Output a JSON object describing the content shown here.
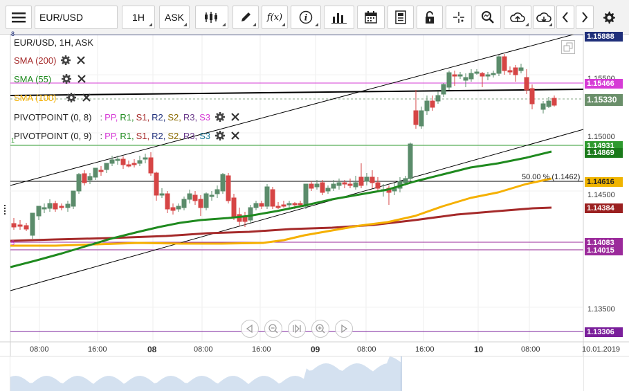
{
  "toolbar": {
    "symbol": "EUR/USD",
    "timeframe": "1H",
    "price_type": "ASK",
    "fx_label": "f(x)"
  },
  "legend": {
    "title": "EUR/USD, 1H, ASK",
    "sma200": "SMA (200)",
    "sma55": "SMA (55)",
    "sma100": "SMA (100)",
    "pivot1_name": "PIVOTPOINT (0, 8)",
    "pivot2_name": "PIVOTPOINT (0, 9)",
    "pivot_sep": ":",
    "pp": "PP,",
    "r1": "R1,",
    "s1": "S1,",
    "r2": "R2,",
    "s2": "S2,",
    "r3": "R3,",
    "s3": "S3"
  },
  "colors": {
    "sma200": "#a52a2a",
    "sma55": "#1f8a1f",
    "sma100": "#f5b000",
    "up": "#5b8c6b",
    "down": "#d64545"
  },
  "price_axis": {
    "ticks": [
      "1.15500",
      "1.15000",
      "1.14500",
      "1.13500"
    ],
    "labels": [
      {
        "text": "1.15888",
        "color": "#1f2f7a"
      },
      {
        "text": "1.15466",
        "color": "#d63bd6"
      },
      {
        "text": "1.15330",
        "color": "#6a8f6a"
      },
      {
        "text": "1.14931",
        "color": "#2e9a2e"
      },
      {
        "text": "1.14869",
        "color": "#1a7a1a"
      },
      {
        "text": "1.14616",
        "color": "#f0b400"
      },
      {
        "text": "1.14384",
        "color": "#9b2020"
      },
      {
        "text": "1.14083",
        "color": "#9b2a9b"
      },
      {
        "text": "1.14015",
        "color": "#9b2a9b"
      },
      {
        "text": "1.13306",
        "color": "#7a1f9b"
      }
    ]
  },
  "time_axis": [
    "08:00",
    "16:00",
    "08",
    "08:00",
    "16:00",
    "09",
    "08:00",
    "16:00",
    "10",
    "08:00",
    "10.01.2019"
  ],
  "fib_label": "50.00 % (1.1462)",
  "left_markers": {
    "top": "8",
    "one": "1",
    "five": "5"
  }
}
